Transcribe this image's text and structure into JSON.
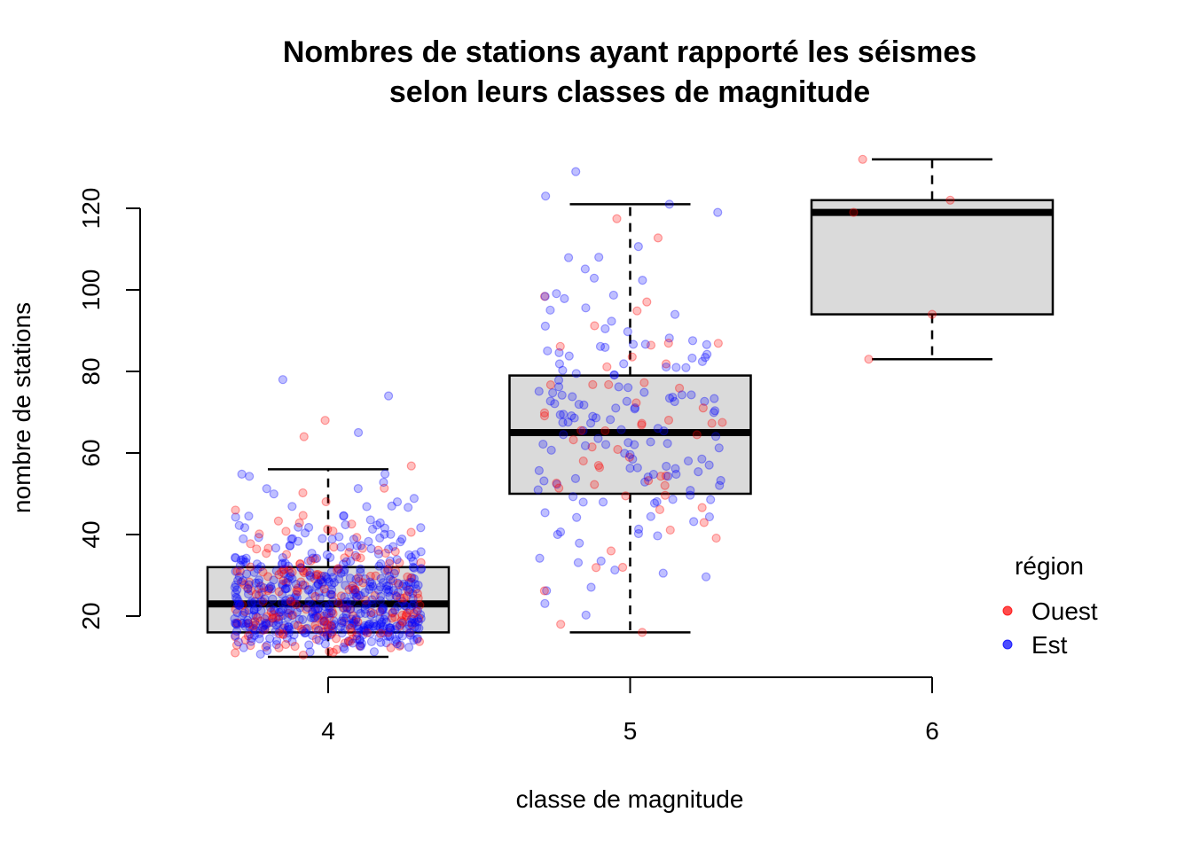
{
  "chart_data": {
    "type": "boxplot",
    "title_line1": "Nombres de stations ayant rapporté les séismes",
    "title_line2": "selon leurs classes de magnitude",
    "xlabel": "classe de magnitude",
    "ylabel": "nombre de stations",
    "categories": [
      "4",
      "5",
      "6"
    ],
    "y_ticks": [
      "20",
      "40",
      "60",
      "80",
      "100",
      "120"
    ],
    "ylim": [
      10,
      132
    ],
    "boxes": [
      {
        "category": "4",
        "whisker_low": 10,
        "q1": 16,
        "median": 23,
        "q3": 32,
        "whisker_high": 56
      },
      {
        "category": "5",
        "whisker_low": 16,
        "q1": 50,
        "median": 65,
        "q3": 79,
        "whisker_high": 121
      },
      {
        "category": "6",
        "whisker_low": 83,
        "q1": 94,
        "median": 119,
        "q3": 122,
        "whisker_high": 132
      }
    ],
    "legend": {
      "title": "région",
      "position": "right",
      "items": [
        {
          "label": "Ouest",
          "color": "#e8474c"
        },
        {
          "label": "Est",
          "color": "#3a3aff"
        }
      ]
    },
    "box_fill": "#d3d3d3",
    "point_colors": {
      "Ouest": "#ff0000",
      "Est": "#0000ff"
    },
    "outlying_points": [
      {
        "category": "4",
        "x": 3.85,
        "y": 78,
        "region": "Est"
      },
      {
        "category": "4",
        "x": 3.99,
        "y": 68,
        "region": "Ouest"
      },
      {
        "category": "4",
        "x": 4.2,
        "y": 74,
        "region": "Est"
      },
      {
        "category": "4",
        "x": 4.1,
        "y": 65,
        "region": "Est"
      },
      {
        "category": "4",
        "x": 3.92,
        "y": 64,
        "region": "Ouest"
      },
      {
        "category": "5",
        "x": 4.72,
        "y": 123,
        "region": "Est"
      },
      {
        "category": "5",
        "x": 4.82,
        "y": 129,
        "region": "Est"
      },
      {
        "category": "5",
        "x": 5.13,
        "y": 121,
        "region": "Est"
      },
      {
        "category": "5",
        "x": 5.29,
        "y": 119,
        "region": "Est"
      },
      {
        "category": "5",
        "x": 4.77,
        "y": 18,
        "region": "Ouest"
      },
      {
        "category": "5",
        "x": 5.04,
        "y": 16,
        "region": "Ouest"
      },
      {
        "category": "6",
        "x": 5.77,
        "y": 132,
        "region": "Ouest"
      },
      {
        "category": "6",
        "x": 5.74,
        "y": 119,
        "region": "Ouest"
      },
      {
        "category": "6",
        "x": 6.06,
        "y": 122,
        "region": "Ouest"
      },
      {
        "category": "6",
        "x": 6.0,
        "y": 94,
        "region": "Ouest"
      },
      {
        "category": "6",
        "x": 5.79,
        "y": 83,
        "region": "Ouest"
      }
    ]
  }
}
